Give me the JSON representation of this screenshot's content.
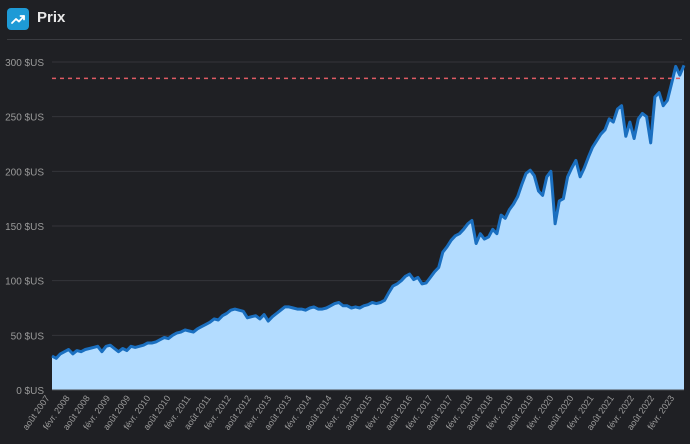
{
  "header": {
    "title": "Prix",
    "icon": "trending-up-icon",
    "icon_color": "#1e9ad6"
  },
  "chart_data": {
    "type": "area",
    "title": "",
    "xlabel": "",
    "ylabel": "",
    "ylim": [
      0,
      300
    ],
    "yticks": [
      "0 $US",
      "50 $US",
      "100 $US",
      "150 $US",
      "200 $US",
      "250 $US",
      "300 $US"
    ],
    "ytick_values": [
      0,
      50,
      100,
      150,
      200,
      250,
      300
    ],
    "xticks": [
      "août 2007",
      "févr. 2008",
      "août 2008",
      "févr. 2009",
      "août 2009",
      "févr. 2010",
      "août 2010",
      "févr. 2011",
      "août 2011",
      "févr. 2012",
      "août 2012",
      "févr. 2013",
      "août 2013",
      "févr. 2014",
      "août 2014",
      "févr. 2015",
      "août 2015",
      "févr. 2016",
      "août 2016",
      "févr. 2017",
      "août 2017",
      "févr. 2018",
      "août 2018",
      "févr. 2019",
      "août 2019",
      "févr. 2020",
      "août 2020",
      "févr. 2021",
      "août 2021",
      "févr. 2022",
      "août 2022",
      "févr. 2023"
    ],
    "reference_line": 285,
    "grid": true,
    "colors": {
      "fill": "#b3dcff",
      "line": "#1a6fc0",
      "reference": "#e05a63",
      "grid": "#34353a",
      "tick": "#9a9a9a"
    },
    "series": [
      {
        "values": [
          31,
          29,
          33,
          35,
          37,
          33,
          36,
          35,
          37,
          38,
          39,
          40,
          35,
          40,
          41,
          38,
          35,
          38,
          36,
          40,
          39,
          40,
          41,
          43,
          43,
          44,
          46,
          48,
          47,
          50,
          52,
          53,
          55,
          54,
          53,
          56,
          58,
          60,
          62,
          65,
          64,
          68,
          70,
          73,
          74,
          73,
          72,
          66,
          67,
          68,
          65,
          69,
          63,
          67,
          70,
          73,
          76,
          76,
          75,
          74,
          74,
          73,
          75,
          76,
          74,
          74,
          75,
          77,
          79,
          80,
          77,
          77,
          75,
          76,
          75,
          77,
          78,
          80,
          79,
          80,
          82,
          89,
          95,
          97,
          100,
          104,
          106,
          101,
          103,
          97,
          98,
          103,
          108,
          112,
          126,
          131,
          137,
          141,
          143,
          147,
          152,
          155,
          134,
          143,
          138,
          140,
          147,
          143,
          160,
          157,
          165,
          170,
          177,
          188,
          198,
          201,
          196,
          182,
          178,
          195,
          200,
          152,
          173,
          175,
          195,
          203,
          210,
          195,
          203,
          213,
          222,
          228,
          234,
          238,
          248,
          245,
          257,
          260,
          232,
          245,
          230,
          248,
          253,
          250,
          226,
          268,
          272,
          260,
          265,
          280,
          296,
          288,
          297
        ]
      }
    ]
  }
}
